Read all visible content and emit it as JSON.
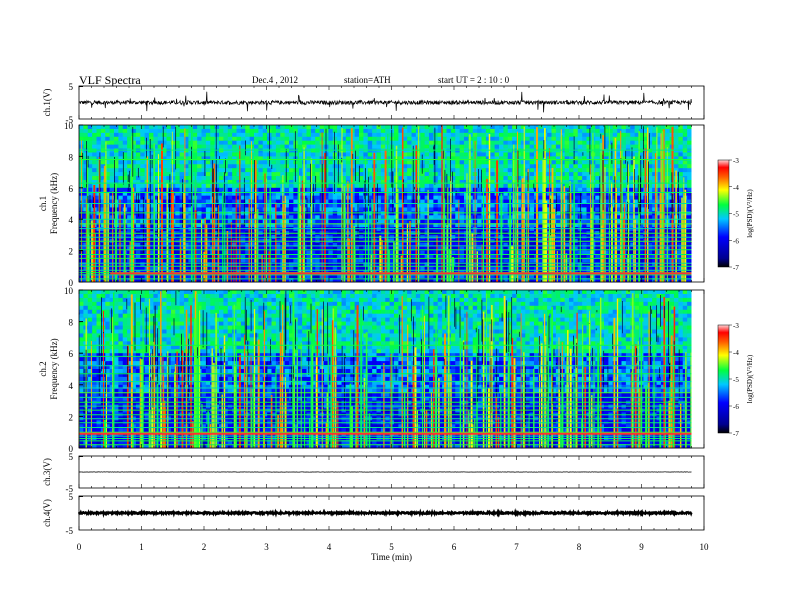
{
  "header": {
    "title": "VLF  Spectra",
    "date": "Dec.4  , 2012",
    "station": "station=ATH",
    "start": "start  UT  =   2  : 10 : 0"
  },
  "chart_data": [
    {
      "type": "line",
      "panel": "ch1-waveform",
      "ylabel": "ch.1(V)",
      "ylim": [
        -5,
        5
      ],
      "yticks": [
        "5",
        "-5"
      ],
      "xlim": [
        0,
        10
      ],
      "baseline": 0,
      "noise_amplitude": 0.6
    },
    {
      "type": "heatmap",
      "panel": "ch1-spectrogram",
      "ylabel_channel": "ch.1",
      "ylabel": "Frequency  (kHz)",
      "ylim": [
        0,
        10
      ],
      "yticks": [
        "0",
        "2",
        "4",
        "6",
        "8",
        "10"
      ],
      "xlim": [
        0,
        9.8
      ],
      "colorbar": {
        "label": "log(PSD)(V²/Hz)",
        "range": [
          -7,
          -3
        ],
        "ticks": [
          "-3",
          "-4",
          "-5",
          "-6",
          "-7"
        ]
      },
      "horizontal_lines_khz": [
        0.2,
        0.45,
        0.6,
        0.75,
        1.0,
        1.2,
        1.5,
        1.75,
        2.05,
        2.3,
        2.6,
        2.85,
        3.1,
        3.4,
        3.7,
        4.0,
        4.4,
        5.0,
        5.7,
        6.3,
        7.8,
        8.4
      ],
      "strong_line_khz": 0.55,
      "strong_line_xrange": [
        0.5,
        9.8
      ]
    },
    {
      "type": "heatmap",
      "panel": "ch2-spectrogram",
      "ylabel_channel": "ch.2",
      "ylabel": "Frequency  (kHz)",
      "ylim": [
        0,
        10
      ],
      "yticks": [
        "0",
        "2",
        "4",
        "6",
        "8",
        "10"
      ],
      "xlim": [
        0,
        9.8
      ],
      "colorbar": {
        "label": "log(PSD)(V²/Hz)",
        "range": [
          -7,
          -3
        ],
        "ticks": [
          "-3",
          "-4",
          "-5",
          "-6",
          "-7"
        ]
      },
      "horizontal_lines_khz": [
        0.2,
        0.45,
        0.6,
        0.75,
        1.0,
        1.3,
        1.6,
        1.85,
        2.1,
        2.4,
        2.65,
        2.9,
        3.2,
        3.5,
        3.8,
        4.2,
        4.7,
        5.2,
        5.8,
        6.5
      ],
      "strong_line_khz": 0.9,
      "strong_line_xrange": [
        0,
        9.8
      ]
    },
    {
      "type": "line",
      "panel": "ch3-waveform",
      "ylabel": "ch.3(V)",
      "ylim": [
        -5,
        5
      ],
      "yticks": [
        "5",
        "-5"
      ],
      "xlim": [
        0,
        10
      ],
      "baseline": 0,
      "noise_amplitude": 0.05
    },
    {
      "type": "line",
      "panel": "ch4-waveform",
      "ylabel": "ch.4(V)",
      "ylim": [
        -5,
        5
      ],
      "yticks": [
        "5",
        "-5"
      ],
      "xlim": [
        0,
        10
      ],
      "baseline": 0,
      "noise_amplitude": 0.25,
      "xlabel": "Time  (min)",
      "xticks": [
        "0",
        "1",
        "2",
        "3",
        "4",
        "5",
        "6",
        "7",
        "8",
        "9",
        "10"
      ]
    }
  ]
}
